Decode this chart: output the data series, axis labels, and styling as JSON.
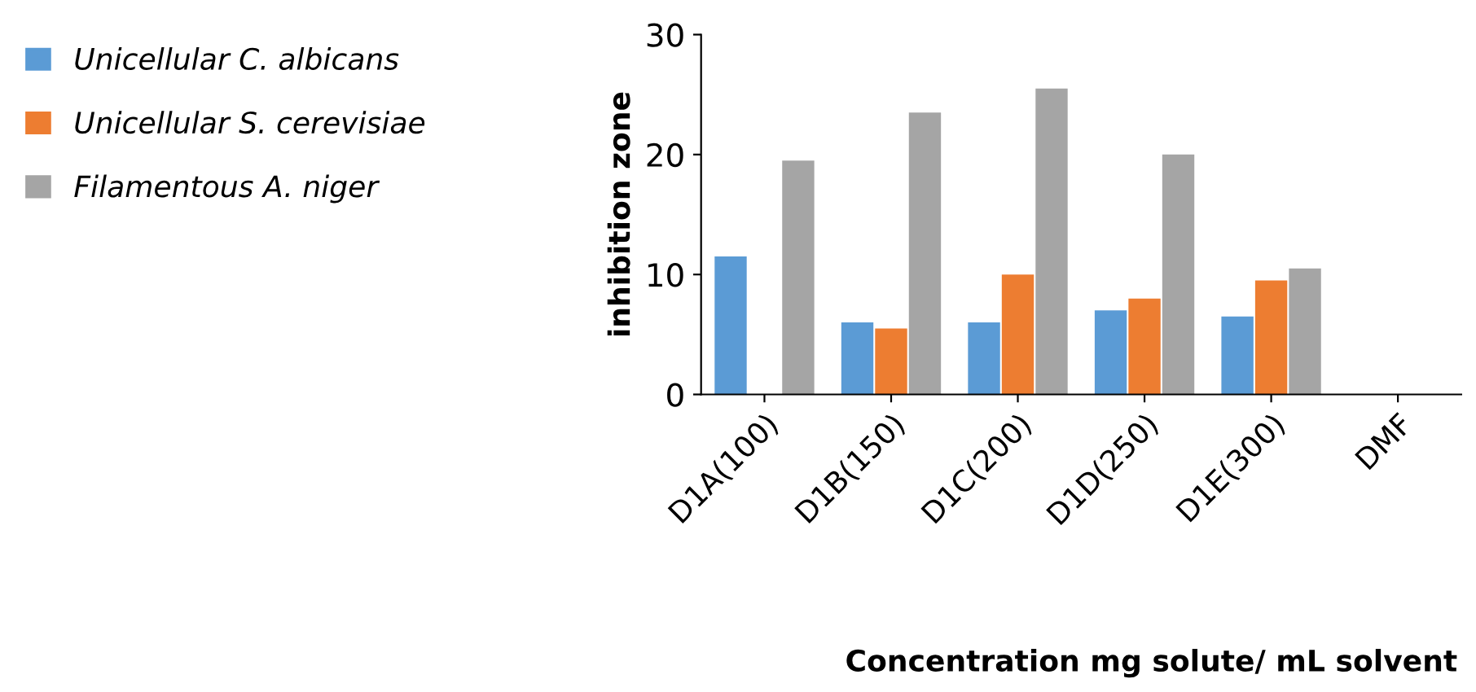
{
  "chart_data": {
    "type": "bar",
    "xlabel": "Concentration mg solute/ mL solvent",
    "ylabel": "inhibition zone",
    "categories": [
      "D1A(100)",
      "D1B(150)",
      "D1C(200)",
      "D1D(250)",
      "D1E(300)",
      "DMF"
    ],
    "series": [
      {
        "name": "Unicellular C. albicans",
        "color": "#5b9bd5",
        "values": [
          11.5,
          6,
          6,
          7,
          6.5,
          0
        ]
      },
      {
        "name": "Unicellular S. cerevisiae",
        "color": "#ed7d31",
        "values": [
          0,
          5.5,
          10,
          8,
          9.5,
          0
        ]
      },
      {
        "name": "Filamentous A. niger",
        "color": "#a5a5a5",
        "values": [
          19.5,
          23.5,
          25.5,
          20,
          10.5,
          0
        ]
      }
    ],
    "ylim": [
      0,
      30
    ],
    "yticks": [
      0,
      10,
      20,
      30
    ],
    "grid": false,
    "legend": "left"
  }
}
